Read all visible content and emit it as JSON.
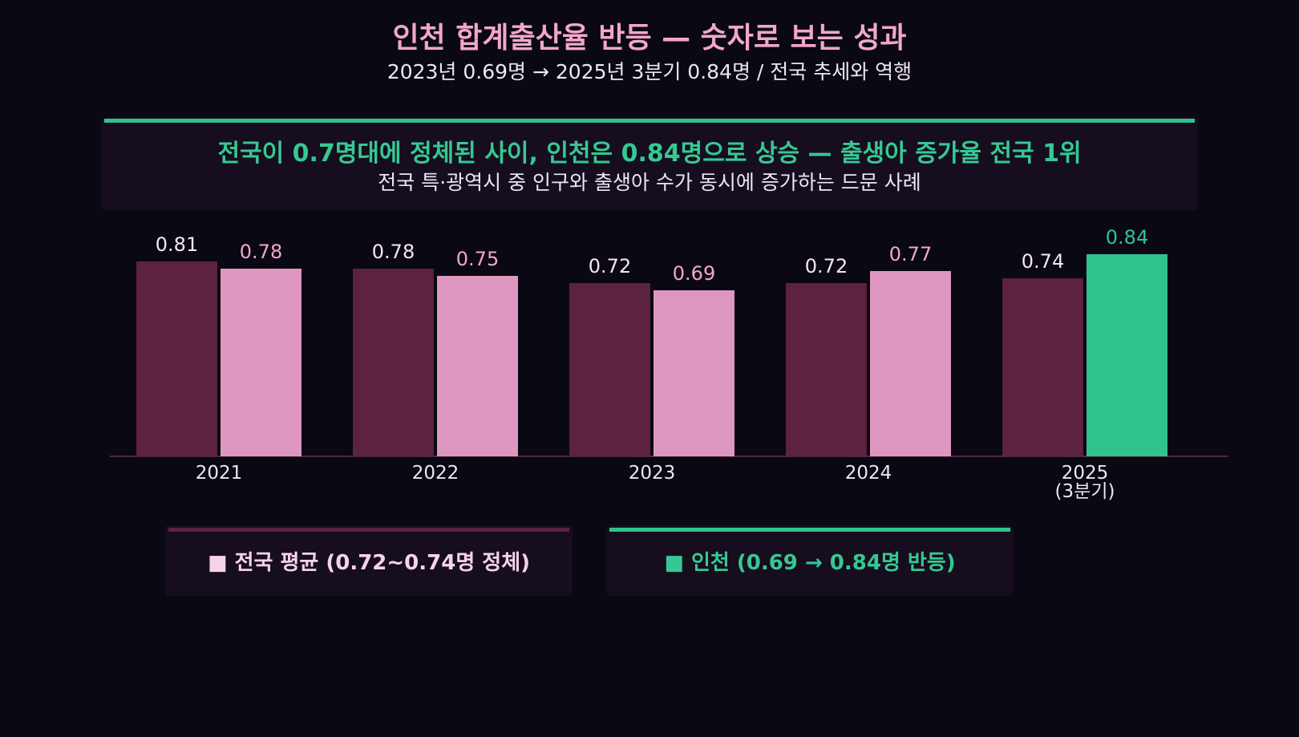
{
  "header": {
    "title": "인천 합계출산율 반등 — 숫자로 보는 성과",
    "subtitle": "2023년 0.69명 → 2025년 3분기 0.84명 / 전국 추세와 역행"
  },
  "callout": {
    "headline": "전국이 0.7명대에 정체된 사이, 인천은 0.84명으로 상승 — 출생아 증가율 전국 1위",
    "detail": "전국 특·광역시 중 인구와 출생아 수가 동시에 증가하는 드문 사례"
  },
  "legend": {
    "national": "■ 전국 평균  (0.72~0.74명 정체)",
    "incheon": "■ 인천  (0.69 → 0.84명 반등)"
  },
  "colors": {
    "national": "#5c2240",
    "incheon": "#de97c0",
    "highlight": "#30c38e",
    "title": "#f3a6cc"
  },
  "chart_data": {
    "type": "bar",
    "categories": [
      "2021",
      "2022",
      "2023",
      "2024",
      "2025\n(3분기)"
    ],
    "series": [
      {
        "name": "전국 평균",
        "values": [
          0.81,
          0.78,
          0.72,
          0.72,
          0.74
        ]
      },
      {
        "name": "인천",
        "values": [
          0.78,
          0.75,
          0.69,
          0.77,
          0.84
        ]
      }
    ],
    "value_labels": [
      [
        "0.81",
        "0.78",
        "0.72",
        "0.72",
        "0.74"
      ],
      [
        "0.78",
        "0.75",
        "0.69",
        "0.77",
        "0.84"
      ]
    ],
    "highlight": {
      "series": 1,
      "index": 4
    },
    "ylim": [
      0,
      0.84
    ],
    "grid": false,
    "xlabel": "",
    "ylabel": ""
  }
}
